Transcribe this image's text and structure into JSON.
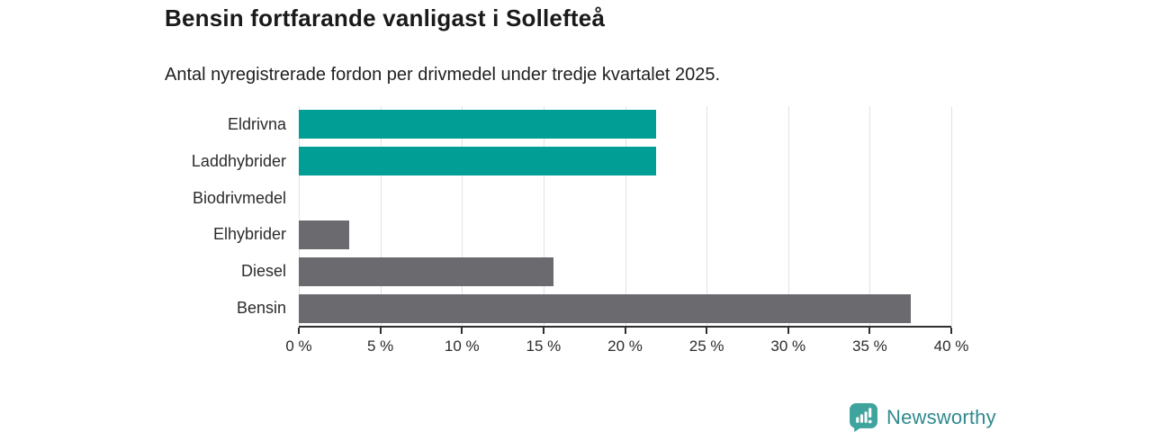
{
  "chart_data": {
    "type": "bar",
    "orientation": "horizontal",
    "title": "Bensin fortfarande vanligast i Sollefteå",
    "subtitle": "Antal nyregistrerade fordon per drivmedel under tredje kvartalet 2025.",
    "categories": [
      "Eldrivna",
      "Laddhybrider",
      "Biodrivmedel",
      "Elhybrider",
      "Diesel",
      "Bensin"
    ],
    "values": [
      21.9,
      21.9,
      0,
      3.1,
      15.6,
      37.5
    ],
    "unit": "%",
    "xlabel": "",
    "ylabel": "",
    "xlim": [
      0,
      40
    ],
    "x_tick_values": [
      0,
      5,
      10,
      15,
      20,
      25,
      30,
      35,
      40
    ],
    "x_tick_labels": [
      "0 %",
      "5 %",
      "10 %",
      "15 %",
      "20 %",
      "25 %",
      "30 %",
      "35 %",
      "40 %"
    ],
    "grid": "vertical-only",
    "legend": "none",
    "bar_colors": [
      "#009e95",
      "#009e95",
      "#6a6a6f",
      "#6a6a6f",
      "#6a6a6f",
      "#6a6a6f"
    ]
  },
  "colors": {
    "highlight_bar": "#009e95",
    "default_bar": "#6a6a6f",
    "gridline": "#e2e2e2",
    "axis": "#2f2f2f",
    "title_text": "#1a1a1a",
    "body_text": "#2b2b2b",
    "background": "#ffffff",
    "logo_mark": "#3ea49d",
    "logo_text": "#2f8a8d"
  },
  "brand": {
    "name": "Newsworthy"
  }
}
